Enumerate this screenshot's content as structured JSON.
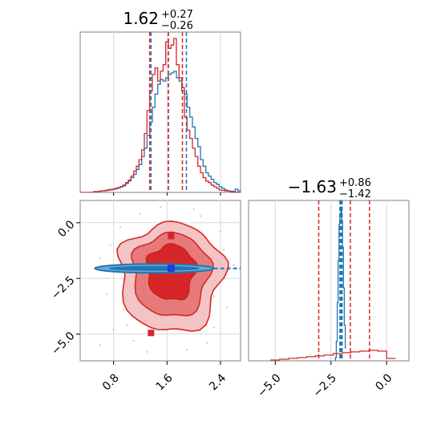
{
  "chart_data": [
    {
      "type": "histogram",
      "panel": "top-left",
      "title": {
        "value": "1.62",
        "upper": "+0.27",
        "lower": "−0.26"
      },
      "xlim": [
        0.3,
        2.7
      ],
      "bins": [
        0.3,
        0.34,
        0.38,
        0.42,
        0.46,
        0.5,
        0.54,
        0.58,
        0.62,
        0.66,
        0.7,
        0.74,
        0.78,
        0.82,
        0.86,
        0.9,
        0.94,
        0.98,
        1.02,
        1.06,
        1.1,
        1.14,
        1.18,
        1.22,
        1.26,
        1.3,
        1.34,
        1.38,
        1.42,
        1.46,
        1.5,
        1.54,
        1.58,
        1.62,
        1.66,
        1.7,
        1.74,
        1.78,
        1.82,
        1.86,
        1.9,
        1.94,
        1.98,
        2.02,
        2.06,
        2.1,
        2.14,
        2.18,
        2.22,
        2.26,
        2.3,
        2.34,
        2.38,
        2.42,
        2.46,
        2.5,
        2.54,
        2.58,
        2.62,
        2.66,
        2.7
      ],
      "series": [
        {
          "color": "#1f77b4",
          "values": [
            0,
            0,
            0,
            0,
            0,
            0.005,
            0.005,
            0.007,
            0.01,
            0.01,
            0.012,
            0.015,
            0.018,
            0.022,
            0.027,
            0.034,
            0.04,
            0.055,
            0.07,
            0.09,
            0.11,
            0.14,
            0.17,
            0.22,
            0.27,
            0.35,
            0.43,
            0.52,
            0.6,
            0.66,
            0.69,
            0.68,
            0.7,
            0.72,
            0.73,
            0.74,
            0.7,
            0.68,
            0.62,
            0.6,
            0.52,
            0.46,
            0.4,
            0.33,
            0.28,
            0.2,
            0.16,
            0.12,
            0.1,
            0.08,
            0.06,
            0.05,
            0.035,
            0.025,
            0.015,
            0.01,
            0.008,
            0.006,
            0.02,
            0.01
          ],
          "quantiles": [
            1.36,
            1.62,
            1.89
          ]
        },
        {
          "color": "#d62728",
          "values": [
            0,
            0,
            0,
            0,
            0,
            0.005,
            0.005,
            0.008,
            0.01,
            0.012,
            0.015,
            0.018,
            0.02,
            0.025,
            0.03,
            0.036,
            0.045,
            0.06,
            0.075,
            0.1,
            0.13,
            0.16,
            0.2,
            0.26,
            0.36,
            0.5,
            0.62,
            0.72,
            0.76,
            0.68,
            0.74,
            0.78,
            0.92,
            0.88,
            0.9,
            0.94,
            0.78,
            0.7,
            0.64,
            0.46,
            0.38,
            0.33,
            0.27,
            0.22,
            0.16,
            0.12,
            0.09,
            0.07,
            0.06,
            0.045,
            0.035,
            0.025,
            0.015,
            0.012,
            0.01,
            0.008,
            0.005,
            0.003,
            0.002,
            0.001
          ],
          "quantiles": [
            1.34,
            1.62,
            1.83
          ]
        }
      ]
    },
    {
      "type": "contour-scatter",
      "panel": "bottom-left",
      "xlim": [
        0.3,
        2.7
      ],
      "ylim": [
        -6.2,
        1.0
      ],
      "xticks": [
        0.8,
        1.6,
        2.4
      ],
      "yticks": [
        0.0,
        -2.5,
        -5.0
      ],
      "xtick_labels": [
        "0.8",
        "1.6",
        "2.4"
      ],
      "ytick_labels": [
        "0.0",
        "−2.5",
        "−5.0"
      ],
      "blue_center": [
        1.66,
        -2.05
      ],
      "red_points": [
        [
          1.66,
          -0.6
        ],
        [
          1.66,
          -1.3
        ],
        [
          1.66,
          -2.05
        ],
        [
          1.66,
          -3.0
        ],
        [
          1.36,
          -4.95
        ]
      ],
      "blue_points": [
        [
          1.66,
          -2.05
        ]
      ],
      "scatter": [
        [
          0.6,
          -5.5
        ],
        [
          0.8,
          -4.8
        ],
        [
          1.0,
          -4.6
        ],
        [
          1.1,
          -5.3
        ],
        [
          2.2,
          -5.4
        ],
        [
          2.3,
          -4.7
        ],
        [
          0.9,
          -0.2
        ],
        [
          1.2,
          0.4
        ],
        [
          2.1,
          0.3
        ],
        [
          2.4,
          -0.4
        ],
        [
          2.5,
          -3.8
        ],
        [
          0.7,
          -3.2
        ],
        [
          2.6,
          -1.9
        ],
        [
          2.5,
          -2.1
        ],
        [
          0.55,
          -2.05
        ],
        [
          0.6,
          -1.6
        ],
        [
          1.3,
          -5.8
        ],
        [
          1.9,
          -5.7
        ],
        [
          2.0,
          0.6
        ],
        [
          1.5,
          0.7
        ],
        [
          0.95,
          -3.9
        ],
        [
          2.3,
          -3.3
        ],
        [
          2.45,
          -1.2
        ],
        [
          0.75,
          -1.0
        ]
      ]
    },
    {
      "type": "histogram",
      "panel": "bottom-right",
      "title": {
        "value": "−1.63",
        "upper": "+0.86",
        "lower": "−1.42"
      },
      "xlim": [
        -6.2,
        1.0
      ],
      "xticks": [
        -5.0,
        -2.5,
        0.0
      ],
      "xtick_labels": [
        "−5.0",
        "−2.5",
        "0.0"
      ],
      "series": [
        {
          "color": "#1f77b4",
          "shape": "narrow-spike",
          "bins": [
            -2.3,
            -2.26,
            -2.22,
            -2.18,
            -2.14,
            -2.1,
            -2.06,
            -2.02,
            -1.98,
            -1.94,
            -1.9,
            -1.86,
            -1.82
          ],
          "values": [
            0.02,
            0.12,
            0.36,
            0.62,
            0.84,
            0.9,
            0.95,
            0.86,
            0.7,
            0.45,
            0.22,
            0.08
          ],
          "quantiles": [
            -2.1,
            -2.05,
            -2.0
          ]
        },
        {
          "color": "#d62728",
          "shape": "broad",
          "bins": [
            -5.2,
            -4.8,
            -4.4,
            -4.0,
            -3.6,
            -3.2,
            -2.8,
            -2.4,
            -2.0,
            -1.6,
            -1.2,
            -0.8,
            -0.4,
            0.0,
            0.4
          ],
          "values": [
            0.005,
            0.01,
            0.015,
            0.02,
            0.025,
            0.03,
            0.035,
            0.045,
            0.05,
            0.055,
            0.06,
            0.065,
            0.06,
            0.015
          ],
          "quantiles": [
            -3.05,
            -1.63,
            -0.77
          ]
        }
      ]
    }
  ]
}
